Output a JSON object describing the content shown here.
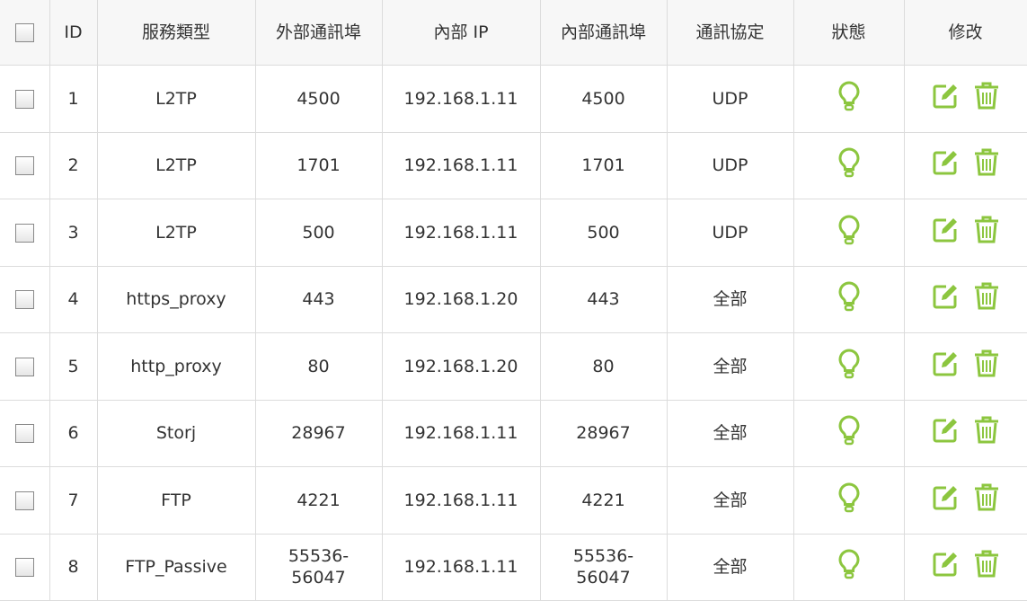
{
  "colors": {
    "accent": "#8cc63f",
    "border": "#dcdcdc",
    "header_bg": "#f7f7f7"
  },
  "headers": [
    "ID",
    "服務類型",
    "外部通訊埠",
    "內部 IP",
    "內部通訊埠",
    "通訊協定",
    "狀態",
    "修改"
  ],
  "rows": [
    {
      "id": "1",
      "service": "L2TP",
      "ext_port": "4500",
      "ip": "192.168.1.11",
      "int_port": "4500",
      "protocol": "UDP",
      "status": "lightbulb-icon"
    },
    {
      "id": "2",
      "service": "L2TP",
      "ext_port": "1701",
      "ip": "192.168.1.11",
      "int_port": "1701",
      "protocol": "UDP",
      "status": "lightbulb-icon"
    },
    {
      "id": "3",
      "service": "L2TP",
      "ext_port": "500",
      "ip": "192.168.1.11",
      "int_port": "500",
      "protocol": "UDP",
      "status": "lightbulb-icon"
    },
    {
      "id": "4",
      "service": "https_proxy",
      "ext_port": "443",
      "ip": "192.168.1.20",
      "int_port": "443",
      "protocol": "全部",
      "status": "lightbulb-icon"
    },
    {
      "id": "5",
      "service": "http_proxy",
      "ext_port": "80",
      "ip": "192.168.1.20",
      "int_port": "80",
      "protocol": "全部",
      "status": "lightbulb-icon"
    },
    {
      "id": "6",
      "service": "Storj",
      "ext_port": "28967",
      "ip": "192.168.1.11",
      "int_port": "28967",
      "protocol": "全部",
      "status": "lightbulb-icon"
    },
    {
      "id": "7",
      "service": "FTP",
      "ext_port": "4221",
      "ip": "192.168.1.11",
      "int_port": "4221",
      "protocol": "全部",
      "status": "lightbulb-icon"
    },
    {
      "id": "8",
      "service": "FTP_Passive",
      "ext_port": "55536-\n56047",
      "ip": "192.168.1.11",
      "int_port": "55536-\n56047",
      "protocol": "全部",
      "status": "lightbulb-icon"
    }
  ]
}
